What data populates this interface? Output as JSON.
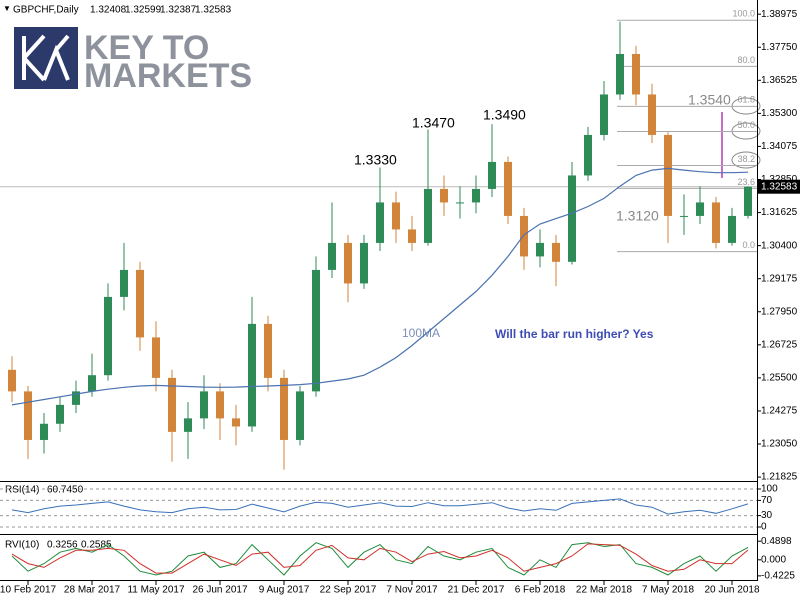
{
  "logo": {
    "line1": "KEY TO",
    "line2": "MARKETS"
  },
  "chart_data": [
    {
      "type": "candlestick",
      "symbol": "GBPCHF,Daily",
      "quote": [
        1.32408,
        1.32599,
        1.32387,
        1.32583
      ],
      "categories": [
        null,
        "10 Feb 2017",
        null,
        null,
        null,
        "28 Mar 2017",
        null,
        null,
        null,
        "11 May 2017",
        null,
        null,
        null,
        "26 Jun 2017",
        null,
        null,
        null,
        "9 Aug 2017",
        null,
        null,
        null,
        "22 Sep 2017",
        null,
        null,
        null,
        "7 Nov 2017",
        null,
        null,
        null,
        "21 Dec 2017",
        null,
        null,
        null,
        "6 Feb 2018",
        null,
        null,
        null,
        "22 Mar 2018",
        null,
        null,
        null,
        "7 May 2018",
        null,
        null,
        null,
        "20 Jun 2018",
        null
      ],
      "open": [
        1.258,
        1.25,
        1.232,
        1.238,
        1.245,
        1.25,
        1.256,
        1.285,
        1.295,
        1.27,
        1.255,
        1.235,
        1.24,
        1.25,
        1.24,
        1.237,
        1.275,
        1.255,
        1.232,
        1.25,
        1.295,
        1.305,
        1.29,
        1.305,
        1.32,
        1.31,
        1.305,
        1.325,
        1.32,
        1.32,
        1.325,
        1.335,
        1.315,
        1.3,
        1.305,
        1.298,
        1.33,
        1.345,
        1.36,
        1.375,
        1.36,
        1.345,
        1.315,
        1.315,
        1.32,
        1.305,
        1.315
      ],
      "high": [
        1.263,
        1.252,
        1.242,
        1.248,
        1.254,
        1.264,
        1.29,
        1.305,
        1.298,
        1.276,
        1.258,
        1.246,
        1.256,
        1.253,
        1.245,
        1.285,
        1.278,
        1.258,
        1.252,
        1.3,
        1.32,
        1.308,
        1.308,
        1.333,
        1.324,
        1.315,
        1.347,
        1.33,
        1.326,
        1.33,
        1.349,
        1.337,
        1.318,
        1.31,
        1.308,
        1.335,
        1.348,
        1.365,
        1.387,
        1.378,
        1.364,
        1.346,
        1.323,
        1.326,
        1.322,
        1.318,
        1.326
      ],
      "low": [
        1.246,
        1.225,
        1.227,
        1.235,
        1.242,
        1.248,
        1.254,
        1.28,
        1.265,
        1.25,
        1.224,
        1.225,
        1.236,
        1.232,
        1.23,
        1.235,
        1.25,
        1.221,
        1.23,
        1.248,
        1.292,
        1.283,
        1.288,
        1.302,
        1.305,
        1.302,
        1.304,
        1.315,
        1.314,
        1.316,
        1.322,
        1.312,
        1.295,
        1.296,
        1.289,
        1.297,
        1.328,
        1.343,
        1.358,
        1.356,
        1.342,
        1.305,
        1.308,
        1.312,
        1.303,
        1.304,
        1.314
      ],
      "close": [
        1.25,
        1.232,
        1.238,
        1.245,
        1.25,
        1.256,
        1.285,
        1.295,
        1.27,
        1.255,
        1.235,
        1.24,
        1.25,
        1.24,
        1.237,
        1.275,
        1.255,
        1.232,
        1.25,
        1.295,
        1.305,
        1.29,
        1.305,
        1.32,
        1.31,
        1.305,
        1.325,
        1.32,
        1.32,
        1.325,
        1.335,
        1.315,
        1.3,
        1.305,
        1.298,
        1.33,
        1.345,
        1.36,
        1.375,
        1.36,
        1.345,
        1.315,
        1.315,
        1.32,
        1.305,
        1.315,
        1.32583
      ],
      "up_color": "#2e8b57",
      "down_color": "#d2843a",
      "ma": {
        "name": "100MA",
        "color": "#4a72b0",
        "values": [
          1.245,
          1.246,
          1.247,
          1.248,
          1.249,
          1.25,
          1.2508,
          1.2515,
          1.252,
          1.2522,
          1.252,
          1.2518,
          1.2516,
          1.2515,
          1.2516,
          1.2518,
          1.252,
          1.2522,
          1.2525,
          1.253,
          1.2538,
          1.2546,
          1.256,
          1.259,
          1.2625,
          1.267,
          1.272,
          1.277,
          1.282,
          1.287,
          1.293,
          1.3,
          1.308,
          1.312,
          1.314,
          1.316,
          1.3185,
          1.3215,
          1.326,
          1.33,
          1.332,
          1.3326,
          1.332,
          1.3314,
          1.331,
          1.331,
          1.3312
        ]
      },
      "current_price": 1.32583,
      "ylim": [
        1.2168,
        1.395
      ],
      "yticks": [
        1.21825,
        {
          "value": 1.2305,
          "label": "1.23050"
        },
        1.24275,
        {
          "value": 1.255,
          "label": "1.25500"
        },
        1.26725,
        {
          "value": 1.2795,
          "label": "1.27950"
        },
        1.29175,
        {
          "value": 1.304,
          "label": "1.30400"
        },
        1.31625,
        {
          "value": 1.3285,
          "label": "1.32850"
        },
        1.34075,
        {
          "value": 1.353,
          "label": "1.35300"
        },
        1.36525,
        {
          "value": 1.3775,
          "label": "1.37750"
        },
        1.38975
      ],
      "fib": [
        {
          "label": "100.0",
          "price": 1.3875
        },
        {
          "label": "80.0",
          "price": 1.3704
        },
        {
          "label": "61.8",
          "price": 1.3556
        },
        {
          "label": "50.0",
          "price": 1.3463
        },
        {
          "label": "38.2",
          "price": 1.3337
        },
        {
          "label": "23.6",
          "price": 1.3252
        },
        {
          "label": "0.0",
          "price": 1.3018
        }
      ],
      "annotations": [
        "1.3330",
        "1.3470",
        "1.3490",
        "1.3540",
        "1.3120",
        "Will the bar run higher? Yes"
      ]
    },
    {
      "type": "line",
      "name": "RSI(14)",
      "last": "60.7450",
      "series": [
        {
          "name": "RSI",
          "color": "#3a70b8",
          "values": [
            45,
            38,
            48,
            55,
            58,
            62,
            66,
            55,
            45,
            40,
            38,
            48,
            52,
            45,
            46,
            60,
            50,
            40,
            55,
            65,
            62,
            52,
            58,
            64,
            55,
            54,
            64,
            56,
            56,
            60,
            64,
            50,
            42,
            48,
            44,
            62,
            66,
            70,
            74,
            58,
            52,
            34,
            40,
            44,
            36,
            48,
            60.745
          ]
        }
      ],
      "ylim": [
        -18.4,
        118.4
      ],
      "yticks": [
        0,
        30,
        70,
        100
      ]
    },
    {
      "type": "line",
      "name": "RVI(10)",
      "last": [
        "0.3256",
        "0.2585"
      ],
      "series": [
        {
          "name": "RVI",
          "color": "#1e8c3a",
          "values": [
            0.1,
            -0.3,
            -0.1,
            0.2,
            0.3,
            0.2,
            0.4,
            0.1,
            -0.3,
            -0.4,
            -0.3,
            0.1,
            0.2,
            -0.2,
            -0.1,
            0.4,
            0.0,
            -0.4,
            0.1,
            0.45,
            0.3,
            -0.2,
            0.2,
            0.4,
            0.0,
            -0.1,
            0.35,
            0.1,
            0.0,
            0.2,
            0.3,
            -0.2,
            -0.4,
            0.0,
            -0.2,
            0.4,
            0.45,
            0.35,
            0.4,
            -0.1,
            -0.2,
            -0.4,
            -0.1,
            0.1,
            -0.3,
            0.1,
            0.3256
          ]
        },
        {
          "name": "Signal",
          "color": "#d0302a",
          "values": [
            0.15,
            -0.1,
            -0.2,
            0.05,
            0.25,
            0.25,
            0.3,
            0.25,
            -0.1,
            -0.35,
            -0.35,
            -0.1,
            0.15,
            0.0,
            -0.15,
            0.15,
            0.2,
            -0.2,
            -0.15,
            0.25,
            0.38,
            0.05,
            0.0,
            0.3,
            0.2,
            -0.05,
            0.15,
            0.22,
            0.05,
            0.1,
            0.25,
            0.05,
            -0.3,
            -0.2,
            -0.1,
            0.1,
            0.42,
            0.4,
            0.38,
            0.15,
            -0.15,
            -0.3,
            -0.25,
            0.0,
            -0.1,
            -0.1,
            0.2585
          ]
        }
      ],
      "ylim": [
        -0.531,
        0.653
      ],
      "yticks": [
        -0.4225,
        {
          "value": 0,
          "label": "0.000"
        },
        0.4898
      ]
    }
  ]
}
